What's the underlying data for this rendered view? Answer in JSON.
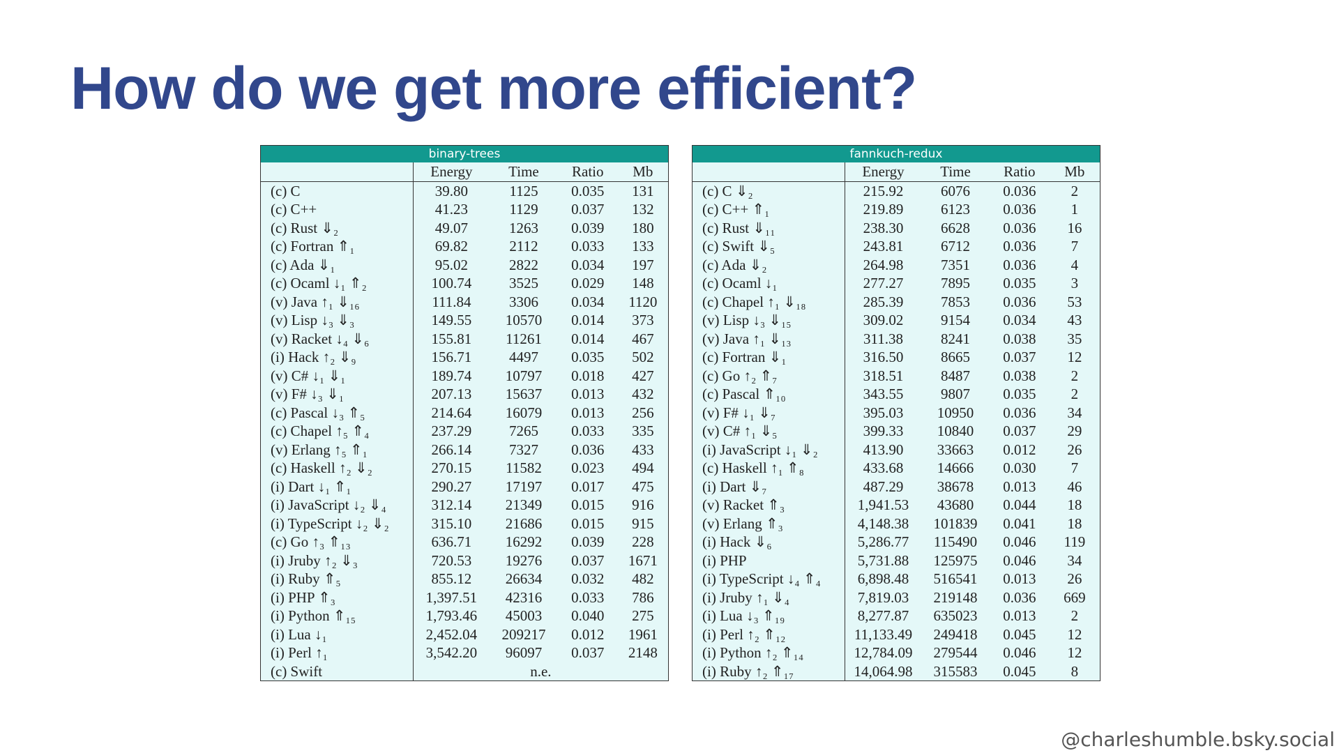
{
  "header": {
    "title": "How do we get more efficient?"
  },
  "tables": [
    {
      "title": "binary-trees",
      "columns": [
        "",
        "Energy",
        "Time",
        "Ratio",
        "Mb"
      ],
      "rows": [
        [
          "(c) C",
          "39.80",
          "1125",
          "0.035",
          "131"
        ],
        [
          "(c) C++",
          "41.23",
          "1129",
          "0.037",
          "132"
        ],
        [
          "(c) Rust ⇓₂",
          "49.07",
          "1263",
          "0.039",
          "180"
        ],
        [
          "(c) Fortran ⇑₁",
          "69.82",
          "2112",
          "0.033",
          "133"
        ],
        [
          "(c) Ada ⇓₁",
          "95.02",
          "2822",
          "0.034",
          "197"
        ],
        [
          "(c) Ocaml ↓₁ ⇑₂",
          "100.74",
          "3525",
          "0.029",
          "148"
        ],
        [
          "(v) Java ↑₁ ⇓₁₆",
          "111.84",
          "3306",
          "0.034",
          "1120"
        ],
        [
          "(v) Lisp ↓₃ ⇓₃",
          "149.55",
          "10570",
          "0.014",
          "373"
        ],
        [
          "(v) Racket ↓₄ ⇓₆",
          "155.81",
          "11261",
          "0.014",
          "467"
        ],
        [
          "(i) Hack ↑₂ ⇓₉",
          "156.71",
          "4497",
          "0.035",
          "502"
        ],
        [
          "(v) C# ↓₁ ⇓₁",
          "189.74",
          "10797",
          "0.018",
          "427"
        ],
        [
          "(v) F# ↓₃ ⇓₁",
          "207.13",
          "15637",
          "0.013",
          "432"
        ],
        [
          "(c) Pascal ↓₃ ⇑₅",
          "214.64",
          "16079",
          "0.013",
          "256"
        ],
        [
          "(c) Chapel ↑₅ ⇑₄",
          "237.29",
          "7265",
          "0.033",
          "335"
        ],
        [
          "(v) Erlang ↑₅ ⇑₁",
          "266.14",
          "7327",
          "0.036",
          "433"
        ],
        [
          "(c) Haskell ↑₂ ⇓₂",
          "270.15",
          "11582",
          "0.023",
          "494"
        ],
        [
          "(i) Dart ↓₁ ⇑₁",
          "290.27",
          "17197",
          "0.017",
          "475"
        ],
        [
          "(i) JavaScript ↓₂ ⇓₄",
          "312.14",
          "21349",
          "0.015",
          "916"
        ],
        [
          "(i) TypeScript ↓₂ ⇓₂",
          "315.10",
          "21686",
          "0.015",
          "915"
        ],
        [
          "(c) Go ↑₃ ⇑₁₃",
          "636.71",
          "16292",
          "0.039",
          "228"
        ],
        [
          "(i) Jruby ↑₂ ⇓₃",
          "720.53",
          "19276",
          "0.037",
          "1671"
        ],
        [
          "(i) Ruby ⇑₅",
          "855.12",
          "26634",
          "0.032",
          "482"
        ],
        [
          "(i) PHP ⇑₃",
          "1,397.51",
          "42316",
          "0.033",
          "786"
        ],
        [
          "(i) Python ⇑₁₅",
          "1,793.46",
          "45003",
          "0.040",
          "275"
        ],
        [
          "(i) Lua ↓₁",
          "2,452.04",
          "209217",
          "0.012",
          "1961"
        ],
        [
          "(i) Perl ↑₁",
          "3,542.20",
          "96097",
          "0.037",
          "2148"
        ],
        [
          "(c) Swift",
          "n.e."
        ]
      ]
    },
    {
      "title": "fannkuch-redux",
      "columns": [
        "",
        "Energy",
        "Time",
        "Ratio",
        "Mb"
      ],
      "rows": [
        [
          "(c) C ⇓₂",
          "215.92",
          "6076",
          "0.036",
          "2"
        ],
        [
          "(c) C++ ⇑₁",
          "219.89",
          "6123",
          "0.036",
          "1"
        ],
        [
          "(c) Rust ⇓₁₁",
          "238.30",
          "6628",
          "0.036",
          "16"
        ],
        [
          "(c) Swift ⇓₅",
          "243.81",
          "6712",
          "0.036",
          "7"
        ],
        [
          "(c) Ada ⇓₂",
          "264.98",
          "7351",
          "0.036",
          "4"
        ],
        [
          "(c) Ocaml ↓₁",
          "277.27",
          "7895",
          "0.035",
          "3"
        ],
        [
          "(c) Chapel ↑₁ ⇓₁₈",
          "285.39",
          "7853",
          "0.036",
          "53"
        ],
        [
          "(v) Lisp ↓₃ ⇓₁₅",
          "309.02",
          "9154",
          "0.034",
          "43"
        ],
        [
          "(v) Java ↑₁ ⇓₁₃",
          "311.38",
          "8241",
          "0.038",
          "35"
        ],
        [
          "(c) Fortran ⇓₁",
          "316.50",
          "8665",
          "0.037",
          "12"
        ],
        [
          "(c) Go ↑₂ ⇑₇",
          "318.51",
          "8487",
          "0.038",
          "2"
        ],
        [
          "(c) Pascal ⇑₁₀",
          "343.55",
          "9807",
          "0.035",
          "2"
        ],
        [
          "(v) F# ↓₁ ⇓₇",
          "395.03",
          "10950",
          "0.036",
          "34"
        ],
        [
          "(v) C# ↑₁ ⇓₅",
          "399.33",
          "10840",
          "0.037",
          "29"
        ],
        [
          "(i) JavaScript ↓₁ ⇓₂",
          "413.90",
          "33663",
          "0.012",
          "26"
        ],
        [
          "(c) Haskell ↑₁ ⇑₈",
          "433.68",
          "14666",
          "0.030",
          "7"
        ],
        [
          "(i) Dart ⇓₇",
          "487.29",
          "38678",
          "0.013",
          "46"
        ],
        [
          "(v) Racket ⇑₃",
          "1,941.53",
          "43680",
          "0.044",
          "18"
        ],
        [
          "(v) Erlang ⇑₃",
          "4,148.38",
          "101839",
          "0.041",
          "18"
        ],
        [
          "(i) Hack ⇓₆",
          "5,286.77",
          "115490",
          "0.046",
          "119"
        ],
        [
          "(i) PHP",
          "5,731.88",
          "125975",
          "0.046",
          "34"
        ],
        [
          "(i) TypeScript ↓₄ ⇑₄",
          "6,898.48",
          "516541",
          "0.013",
          "26"
        ],
        [
          "(i) Jruby ↑₁ ⇓₄",
          "7,819.03",
          "219148",
          "0.036",
          "669"
        ],
        [
          "(i) Lua ↓₃ ⇑₁₉",
          "8,277.87",
          "635023",
          "0.013",
          "2"
        ],
        [
          "(i) Perl ↑₂ ⇑₁₂",
          "11,133.49",
          "249418",
          "0.045",
          "12"
        ],
        [
          "(i) Python ↑₂ ⇑₁₄",
          "12,784.09",
          "279544",
          "0.046",
          "12"
        ],
        [
          "(i) Ruby ↑₂ ⇑₁₇",
          "14,064.98",
          "315583",
          "0.045",
          "8"
        ]
      ]
    }
  ],
  "footer": {
    "handle": "@charleshumble.bsky.social"
  }
}
